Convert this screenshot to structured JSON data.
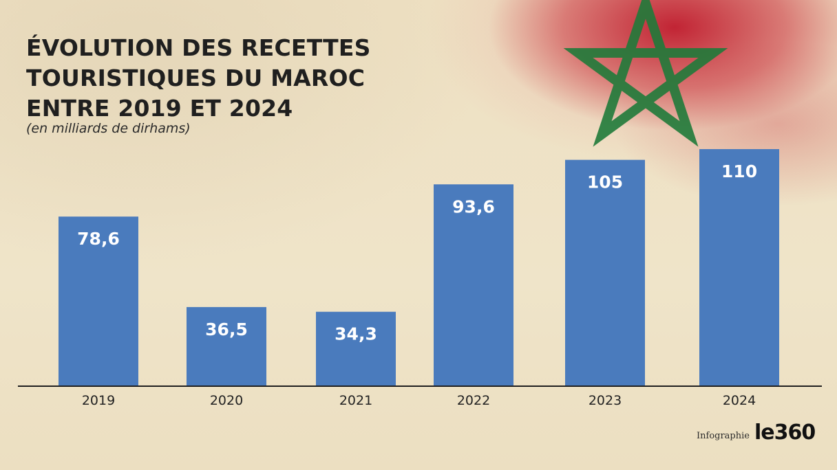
{
  "title": "ÉVOLUTION DES RECETTES TOURISTIQUES DU MAROC ENTRE 2019 ET 2024",
  "subtitle": "(en  milliards de dirhams)",
  "credit": "Infographie",
  "brand": "le360",
  "colors": {
    "bar": "#4a7bbd",
    "bar_label": "#ffffff",
    "axis": "#1f1f1f",
    "tick": "#222222",
    "flag_red": "#c0142a",
    "flag_star": "#1f7a3a"
  },
  "chart_data": {
    "type": "bar",
    "categories": [
      "2019",
      "2020",
      "2021",
      "2022",
      "2023",
      "2024"
    ],
    "values": [
      78.6,
      36.5,
      34.3,
      93.6,
      105,
      110
    ],
    "value_labels": [
      "78,6",
      "36,5",
      "34,3",
      "93,6",
      "105",
      "110"
    ],
    "title": "ÉVOLUTION DES RECETTES TOURISTIQUES DU MAROC ENTRE 2019 ET 2024",
    "subtitle": "(en  milliards de dirhams)",
    "xlabel": "",
    "ylabel": "",
    "ylim": [
      0,
      110
    ],
    "grid": false,
    "legend": "none"
  }
}
